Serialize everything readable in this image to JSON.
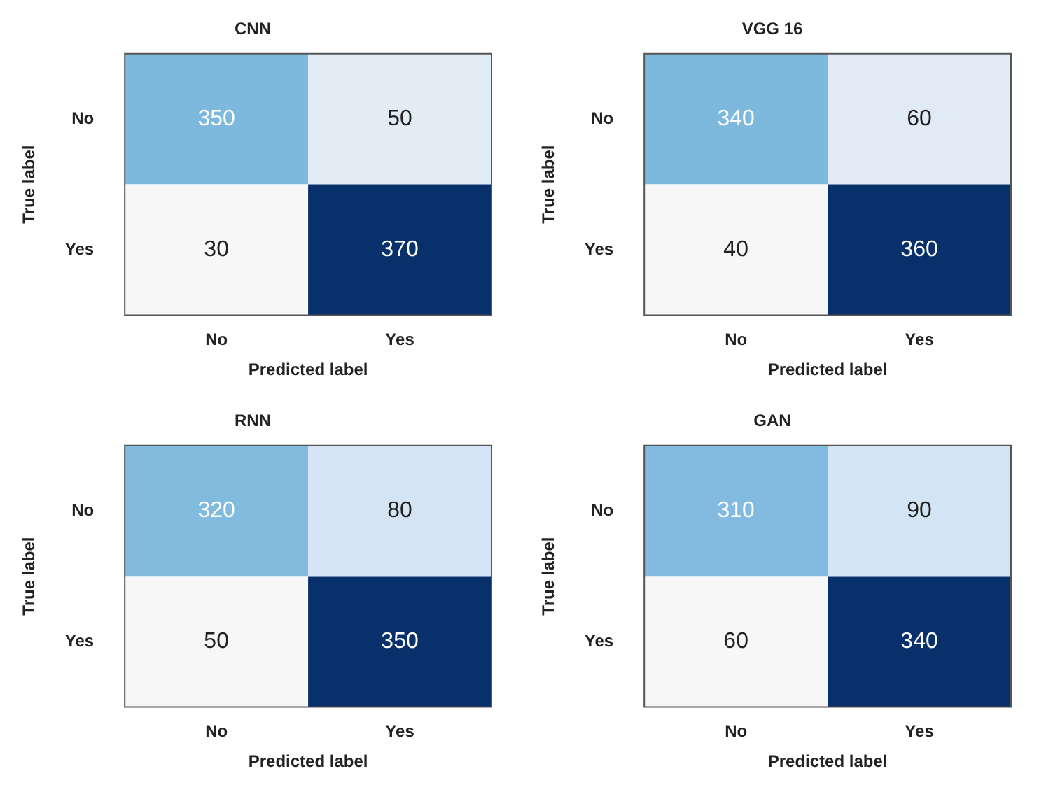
{
  "chart_data": [
    {
      "type": "heatmap",
      "data_labels": true,
      "title": "CNN",
      "xlabel": "Predicted label",
      "ylabel": "True label",
      "categories": [
        "No",
        "Yes"
      ],
      "y_categories": [
        "No",
        "Yes"
      ],
      "cells": [
        [
          350,
          50
        ],
        [
          30,
          370
        ]
      ]
    },
    {
      "type": "heatmap",
      "data_labels": true,
      "title": "VGG 16",
      "xlabel": "Predicted label",
      "ylabel": "True label",
      "categories": [
        "No",
        "Yes"
      ],
      "y_categories": [
        "No",
        "Yes"
      ],
      "cells": [
        [
          340,
          60
        ],
        [
          40,
          360
        ]
      ]
    },
    {
      "type": "heatmap",
      "data_labels": true,
      "title": "RNN",
      "xlabel": "Predicted label",
      "ylabel": "True label",
      "categories": [
        "No",
        "Yes"
      ],
      "y_categories": [
        "No",
        "Yes"
      ],
      "cells": [
        [
          320,
          80
        ],
        [
          50,
          350
        ]
      ]
    },
    {
      "type": "heatmap",
      "data_labels": true,
      "title": "GAN",
      "xlabel": "Predicted label",
      "ylabel": "True label",
      "categories": [
        "No",
        "Yes"
      ],
      "y_categories": [
        "No",
        "Yes"
      ],
      "cells": [
        [
          310,
          90
        ],
        [
          60,
          340
        ]
      ]
    }
  ]
}
